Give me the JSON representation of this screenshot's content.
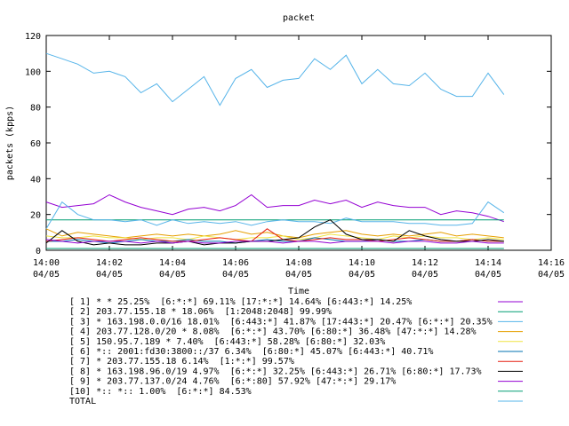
{
  "chart_data": {
    "type": "line",
    "title": "packet",
    "xlabel": "Time",
    "ylabel": "packets (kpps)",
    "ylim": [
      0,
      120
    ],
    "yticks": [
      0,
      20,
      40,
      60,
      80,
      100,
      120
    ],
    "xlim": [
      0,
      16
    ],
    "xticks": [
      {
        "time": "14:00",
        "date": "04/05"
      },
      {
        "time": "14:02",
        "date": "04/05"
      },
      {
        "time": "14:04",
        "date": "04/05"
      },
      {
        "time": "14:06",
        "date": "04/05"
      },
      {
        "time": "14:08",
        "date": "04/05"
      },
      {
        "time": "14:10",
        "date": "04/05"
      },
      {
        "time": "14:12",
        "date": "04/05"
      },
      {
        "time": "14:14",
        "date": "04/05"
      },
      {
        "time": "14:16",
        "date": "04/05"
      }
    ],
    "x": [
      0,
      0.5,
      1,
      1.5,
      2,
      2.5,
      3,
      3.5,
      4,
      4.5,
      5,
      5.5,
      6,
      6.5,
      7,
      7.5,
      8,
      8.5,
      9,
      9.5,
      10,
      10.5,
      11,
      11.5,
      12,
      12.5,
      13,
      13.5,
      14,
      14.5
    ],
    "grid": false,
    "legend_position": "bottom",
    "series": [
      {
        "name": "[ 1] * * 25.25%  [6:*:*] 69.11% [17:*:*] 14.64% [6:443:*] 14.25%",
        "color": "#9400d3",
        "values": [
          27,
          24,
          25,
          26,
          31,
          27,
          24,
          22,
          20,
          23,
          24,
          22,
          25,
          31,
          24,
          25,
          25,
          28,
          26,
          28,
          24,
          27,
          25,
          24,
          24,
          20,
          22,
          21,
          19,
          16
        ]
      },
      {
        "name": "[ 2] 203.77.155.18 * 18.06%  [1:2048:2048] 99.99%",
        "color": "#009e73",
        "values": [
          17,
          17,
          17,
          17,
          17,
          17,
          17,
          17,
          17,
          17,
          17,
          17,
          17,
          17,
          17,
          17,
          17,
          17,
          17,
          17,
          17,
          17,
          17,
          17,
          17,
          17,
          17,
          17,
          17,
          17
        ]
      },
      {
        "name": "[ 3] * 163.198.0.0/16 18.01%  [6:443:*] 41.87% [17:443:*] 20.47% [6:*:*] 20.35%",
        "color": "#56b4e9",
        "values": [
          12,
          27,
          20,
          17,
          17,
          16,
          17,
          14,
          17,
          15,
          16,
          15,
          16,
          14,
          16,
          17,
          16,
          16,
          15,
          18,
          16,
          16,
          16,
          15,
          15,
          14,
          14,
          15,
          27,
          21
        ]
      },
      {
        "name": "[ 4] 203.77.128.0/20 * 8.08%  [6:*:*] 43.70% [6:80:*] 36.48% [47:*:*] 14.28%",
        "color": "#e69f00",
        "values": [
          12,
          8,
          10,
          9,
          8,
          7,
          8,
          9,
          8,
          9,
          8,
          9,
          11,
          9,
          10,
          8,
          7,
          9,
          10,
          11,
          9,
          8,
          9,
          8,
          9,
          10,
          8,
          9,
          8,
          7
        ]
      },
      {
        "name": "[ 5] 150.95.7.189 * 7.40%  [6:443:*] 58.28% [6:80:*] 32.03%",
        "color": "#f0e442",
        "values": [
          8,
          7,
          7,
          8,
          7,
          7,
          6,
          7,
          7,
          6,
          8,
          7,
          6,
          7,
          7,
          8,
          6,
          7,
          9,
          8,
          7,
          6,
          8,
          7,
          8,
          7,
          7,
          6,
          7,
          6
        ]
      },
      {
        "name": "[ 6] *:: 2001:fd30:3800::/37 6.34%  [6:80:*] 45.07% [6:443:*] 40.71%",
        "color": "#0072b2",
        "values": [
          5,
          5,
          6,
          5,
          4,
          5,
          6,
          5,
          5,
          6,
          5,
          5,
          4,
          5,
          6,
          5,
          5,
          7,
          6,
          5,
          5,
          6,
          5,
          5,
          6,
          5,
          5,
          6,
          5,
          5
        ]
      },
      {
        "name": "[ 7] * 203.77.155.18 6.14%  [1:*:*] 99.57%",
        "color": "#e51e10",
        "values": [
          5,
          6,
          7,
          6,
          5,
          6,
          7,
          6,
          5,
          5,
          6,
          7,
          6,
          5,
          12,
          6,
          5,
          6,
          7,
          6,
          6,
          5,
          6,
          7,
          6,
          5,
          5,
          6,
          5,
          5
        ]
      },
      {
        "name": "[ 8] * 163.198.96.0/19 4.97%  [6:*:*] 32.25% [6:443:*] 26.71% [6:80:*] 17.73%",
        "color": "#000000",
        "values": [
          4,
          11,
          5,
          3,
          4,
          3,
          3,
          4,
          4,
          5,
          3,
          4,
          4,
          5,
          5,
          6,
          7,
          13,
          17,
          9,
          6,
          6,
          5,
          11,
          8,
          6,
          5,
          5,
          6,
          5
        ]
      },
      {
        "name": "[ 9] * 203.77.137.0/24 4.76%  [6:*:80] 57.92% [47:*:*] 29.17%",
        "color": "#9400d3",
        "values": [
          6,
          5,
          4,
          5,
          5,
          5,
          4,
          5,
          4,
          5,
          4,
          4,
          5,
          5,
          5,
          4,
          5,
          5,
          4,
          5,
          5,
          5,
          4,
          5,
          5,
          4,
          4,
          5,
          4,
          4
        ]
      },
      {
        "name": "[10] *:: *:: 1.00%  [6:*:*] 84.53%",
        "color": "#009e73",
        "values": [
          1,
          1,
          1,
          1,
          1,
          1,
          1,
          1,
          1,
          1,
          1,
          1,
          1,
          1,
          1,
          1,
          1,
          1,
          1,
          1,
          1,
          1,
          1,
          1,
          1,
          1,
          1,
          1,
          1,
          1
        ]
      },
      {
        "name": "TOTAL",
        "color": "#56b4e9",
        "values": [
          110,
          107,
          104,
          99,
          100,
          97,
          88,
          93,
          83,
          90,
          97,
          81,
          96,
          101,
          91,
          95,
          96,
          107,
          101,
          109,
          93,
          101,
          93,
          92,
          99,
          90,
          86,
          86,
          99,
          87
        ]
      }
    ]
  }
}
